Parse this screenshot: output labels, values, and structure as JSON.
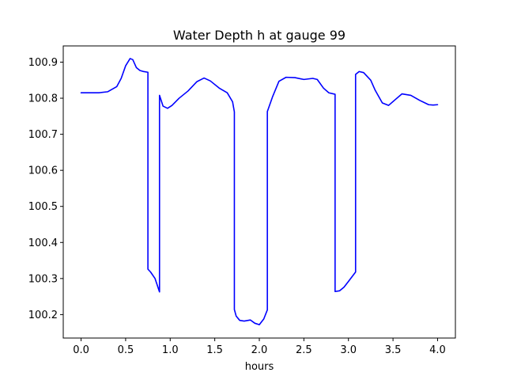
{
  "chart_data": {
    "type": "line",
    "title": "Water Depth h at gauge 99",
    "xlabel": "hours",
    "ylabel": "",
    "xlim": [
      -0.2,
      4.2
    ],
    "ylim": [
      100.135,
      100.945
    ],
    "xticks": [
      0.0,
      0.5,
      1.0,
      1.5,
      2.0,
      2.5,
      3.0,
      3.5,
      4.0
    ],
    "xtick_labels": [
      "0.0",
      "0.5",
      "1.0",
      "1.5",
      "2.0",
      "2.5",
      "3.0",
      "3.5",
      "4.0"
    ],
    "yticks": [
      100.2,
      100.3,
      100.4,
      100.5,
      100.6,
      100.7,
      100.8,
      100.9
    ],
    "ytick_labels": [
      "100.2",
      "100.3",
      "100.4",
      "100.5",
      "100.6",
      "100.7",
      "100.8",
      "100.9"
    ],
    "grid": false,
    "series": [
      {
        "color": "#0000ff",
        "x": [
          0.0,
          0.1,
          0.2,
          0.3,
          0.4,
          0.45,
          0.5,
          0.55,
          0.58,
          0.62,
          0.66,
          0.7,
          0.75,
          0.75,
          0.78,
          0.83,
          0.88,
          0.88,
          0.92,
          0.97,
          1.02,
          1.1,
          1.2,
          1.3,
          1.38,
          1.45,
          1.55,
          1.64,
          1.7,
          1.72,
          1.72,
          1.74,
          1.78,
          1.83,
          1.9,
          1.95,
          2.0,
          2.05,
          2.09,
          2.09,
          2.15,
          2.22,
          2.3,
          2.4,
          2.5,
          2.6,
          2.65,
          2.72,
          2.78,
          2.85,
          2.85,
          2.9,
          2.95,
          3.0,
          3.08,
          3.08,
          3.12,
          3.17,
          3.25,
          3.3,
          3.38,
          3.45,
          3.52,
          3.6,
          3.7,
          3.8,
          3.9,
          3.95,
          4.0
        ],
        "y": [
          100.815,
          100.815,
          100.815,
          100.818,
          100.832,
          100.855,
          100.89,
          100.91,
          100.907,
          100.885,
          100.877,
          100.874,
          100.872,
          100.326,
          100.318,
          100.3,
          100.263,
          100.808,
          100.778,
          100.772,
          100.78,
          100.8,
          100.82,
          100.846,
          100.856,
          100.848,
          100.828,
          100.815,
          100.79,
          100.762,
          100.214,
          100.196,
          100.184,
          100.182,
          100.185,
          100.176,
          100.172,
          100.188,
          100.213,
          100.763,
          100.805,
          100.847,
          100.858,
          100.857,
          100.852,
          100.855,
          100.852,
          100.828,
          100.815,
          100.811,
          100.264,
          100.266,
          100.276,
          100.292,
          100.318,
          100.866,
          100.874,
          100.871,
          100.85,
          100.822,
          100.787,
          100.78,
          100.795,
          100.812,
          100.808,
          100.794,
          100.782,
          100.781,
          100.782
        ]
      }
    ]
  }
}
